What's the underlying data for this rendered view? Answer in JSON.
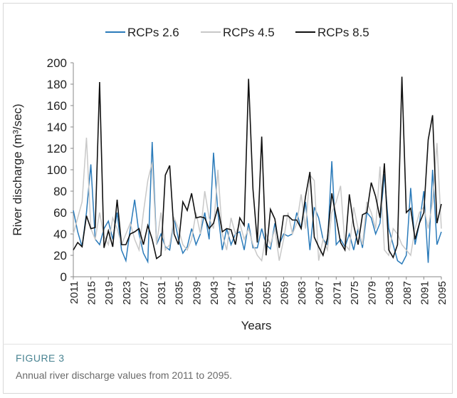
{
  "chart_data": {
    "type": "line",
    "x": [
      2011,
      2012,
      2013,
      2014,
      2015,
      2016,
      2017,
      2018,
      2019,
      2020,
      2021,
      2022,
      2023,
      2024,
      2025,
      2026,
      2027,
      2028,
      2029,
      2030,
      2031,
      2032,
      2033,
      2034,
      2035,
      2036,
      2037,
      2038,
      2039,
      2040,
      2041,
      2042,
      2043,
      2044,
      2045,
      2046,
      2047,
      2048,
      2049,
      2050,
      2051,
      2052,
      2053,
      2054,
      2055,
      2056,
      2057,
      2058,
      2059,
      2060,
      2061,
      2062,
      2063,
      2064,
      2065,
      2066,
      2067,
      2068,
      2069,
      2070,
      2071,
      2072,
      2073,
      2074,
      2075,
      2076,
      2077,
      2078,
      2079,
      2080,
      2081,
      2082,
      2083,
      2084,
      2085,
      2086,
      2087,
      2088,
      2089,
      2090,
      2091,
      2092,
      2093,
      2094,
      2095
    ],
    "series": [
      {
        "name": "RCPs 2.6",
        "color": "#2b7bba",
        "values": [
          62,
          42,
          28,
          60,
          105,
          35,
          30,
          45,
          52,
          35,
          60,
          25,
          15,
          45,
          72,
          40,
          22,
          14,
          126,
          30,
          40,
          28,
          25,
          55,
          35,
          22,
          28,
          45,
          30,
          40,
          60,
          35,
          116,
          60,
          25,
          45,
          30,
          40,
          42,
          25,
          50,
          27,
          27,
          45,
          30,
          26,
          50,
          30,
          40,
          38,
          40,
          60,
          45,
          70,
          25,
          65,
          55,
          35,
          30,
          108,
          30,
          35,
          28,
          40,
          25,
          45,
          27,
          60,
          55,
          40,
          50,
          96,
          45,
          30,
          15,
          12,
          20,
          83,
          30,
          50,
          80,
          13,
          100,
          30,
          42
        ]
      },
      {
        "name": "RCPs 4.5",
        "color": "#c8c8c8",
        "values": [
          40,
          55,
          70,
          130,
          45,
          35,
          60,
          38,
          30,
          55,
          45,
          30,
          40,
          50,
          35,
          25,
          60,
          90,
          107,
          30,
          60,
          25,
          30,
          55,
          45,
          30,
          25,
          35,
          60,
          40,
          80,
          55,
          45,
          100,
          40,
          25,
          55,
          40,
          50,
          35,
          45,
          30,
          20,
          15,
          40,
          30,
          45,
          15,
          35,
          60,
          40,
          50,
          77,
          45,
          95,
          90,
          15,
          35,
          25,
          60,
          70,
          85,
          30,
          25,
          65,
          45,
          30,
          70,
          60,
          45,
          103,
          25,
          20,
          45,
          40,
          30,
          25,
          20,
          45,
          60,
          65,
          45,
          70,
          125,
          45
        ]
      },
      {
        "name": "RCPs 8.5",
        "color": "#111111",
        "values": [
          25,
          32,
          28,
          57,
          45,
          46,
          182,
          27,
          43,
          28,
          72,
          30,
          30,
          40,
          42,
          45,
          30,
          48,
          35,
          17,
          20,
          95,
          104,
          40,
          30,
          70,
          62,
          78,
          55,
          56,
          55,
          45,
          50,
          65,
          42,
          45,
          44,
          30,
          55,
          48,
          185,
          82,
          32,
          131,
          20,
          63,
          54,
          27,
          57,
          57,
          53,
          53,
          45,
          75,
          98,
          37,
          28,
          20,
          36,
          78,
          55,
          32,
          25,
          77,
          48,
          30,
          58,
          60,
          88,
          75,
          55,
          106,
          25,
          18,
          30,
          187,
          60,
          64,
          35,
          50,
          60,
          128,
          151,
          50,
          68
        ]
      }
    ],
    "xlabel": "Years",
    "ylabel": "River discharge (m³/sec)",
    "xlim": [
      2011,
      2095
    ],
    "xticks": [
      2011,
      2015,
      2019,
      2023,
      2027,
      2031,
      2035,
      2039,
      2043,
      2047,
      2051,
      2055,
      2059,
      2063,
      2067,
      2071,
      2075,
      2079,
      2083,
      2087,
      2091,
      2095
    ],
    "ylim": [
      0,
      200
    ],
    "yticks": [
      0,
      20,
      40,
      60,
      80,
      100,
      120,
      140,
      160,
      180,
      200
    ],
    "grid": false,
    "legend": "top"
  },
  "figure": {
    "label": "FIGURE 3",
    "caption": "Annual river discharge values from 2011 to 2095."
  }
}
